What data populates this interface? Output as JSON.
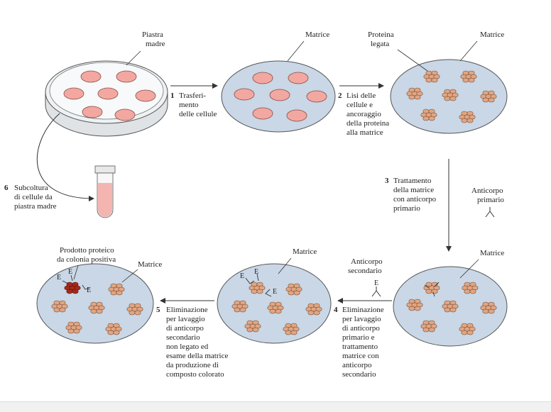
{
  "labels": {
    "piastra_madre": [
      "Piastra",
      "madre"
    ],
    "matrice_top": "Matrice",
    "proteina_legata": [
      "Proteina",
      "legata"
    ],
    "matrice_top_right": "Matrice",
    "matrice_mid_right": "Matrice",
    "matrice_bottom_mid": "Matrice",
    "matrice_bottom_left": "Matrice",
    "prodotto": [
      "Prodotto proteico",
      "da colonia positiva"
    ],
    "anticorpo_primario": [
      "Anticorpo",
      "primario"
    ],
    "anticorpo_secondario": [
      "Anticorpo",
      "secondario"
    ],
    "enzyme_letter": "E"
  },
  "steps": {
    "s1": {
      "num": "1",
      "lines": [
        "Trasferi-",
        "mento",
        "delle cellule"
      ]
    },
    "s2": {
      "num": "2",
      "lines": [
        "Lisi delle",
        "cellule e",
        "ancoraggio",
        "della proteina",
        "alla matrice"
      ]
    },
    "s3": {
      "num": "3",
      "lines": [
        "Trattamento",
        "della matrice",
        "con anticorpo",
        "primario"
      ]
    },
    "s4": {
      "num": "4",
      "lines": [
        "Eliminazione",
        "per lavaggio",
        "di anticorpo",
        "primario e",
        "trattamento",
        "matrice con",
        "anticorpo",
        "secondario"
      ]
    },
    "s5": {
      "num": "5",
      "lines": [
        "Eliminazione",
        "per lavaggio",
        "di anticorpo",
        "secondario",
        "non legato ed",
        "esame della matrice",
        "da produzione di",
        "composto colorato"
      ]
    },
    "s6": {
      "num": "6",
      "lines": [
        "Subcoltura",
        "di cellule da",
        "piastra madre"
      ]
    }
  },
  "colors": {
    "colony_fill": "#f2a8a0",
    "colony_stroke": "#8a4b45",
    "matrix_fill": "#c9d7e6",
    "protein_fill": "#e0a684",
    "protein_stroke": "#7a4a30",
    "positive_fill": "#a82a1a",
    "tube_fill": "#f4b5b0"
  }
}
